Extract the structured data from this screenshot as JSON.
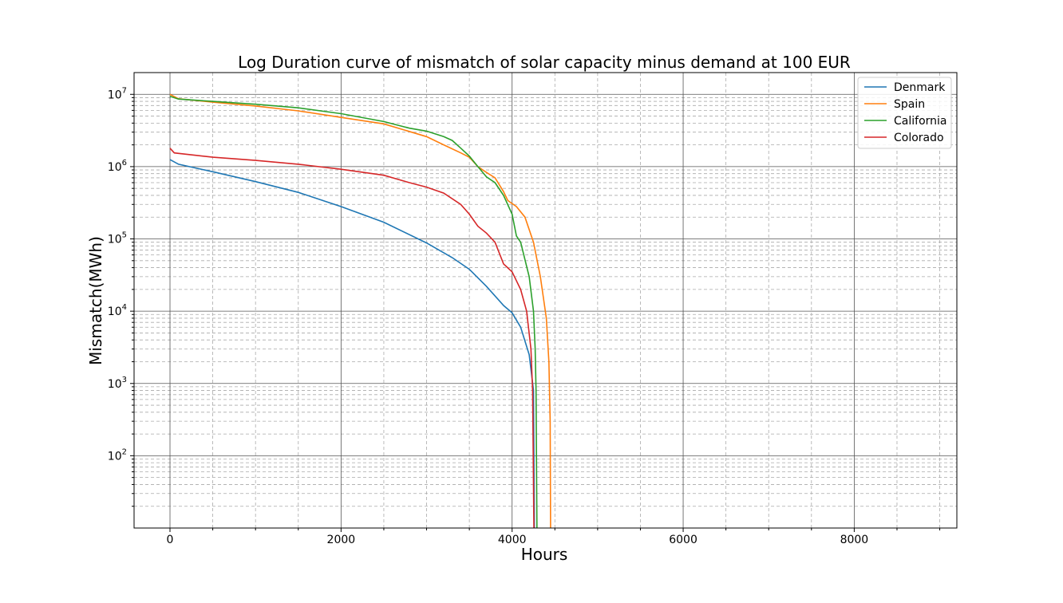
{
  "chart_data": {
    "type": "line",
    "title": "Log Duration curve of mismatch of solar capacity minus demand at 100 EUR",
    "xlabel": "Hours",
    "ylabel": "Mismatch(MWh)",
    "xlim": [
      -420,
      9200
    ],
    "ylim": [
      10,
      20000000
    ],
    "yscale": "log",
    "x_ticks": [
      0,
      2000,
      4000,
      6000,
      8000
    ],
    "x_tick_labels": [
      "0",
      "2000",
      "4000",
      "6000",
      "8000"
    ],
    "y_tick_labels": [
      {
        "base": "10",
        "exp": "7"
      },
      {
        "base": "10",
        "exp": "6"
      },
      {
        "base": "10",
        "exp": "5"
      },
      {
        "base": "10",
        "exp": "4"
      },
      {
        "base": "10",
        "exp": "3"
      },
      {
        "base": "10",
        "exp": "2"
      }
    ],
    "grid": true,
    "legend_position": "top-right",
    "series": [
      {
        "name": "Denmark",
        "color": "#1f77b4",
        "points": [
          [
            0,
            1250000
          ],
          [
            100,
            1080000
          ],
          [
            500,
            850000
          ],
          [
            1000,
            620000
          ],
          [
            1500,
            440000
          ],
          [
            2000,
            280000
          ],
          [
            2500,
            170000
          ],
          [
            3000,
            88000
          ],
          [
            3300,
            55000
          ],
          [
            3500,
            38000
          ],
          [
            3700,
            22000
          ],
          [
            3900,
            12000
          ],
          [
            4000,
            9500
          ],
          [
            4100,
            6000
          ],
          [
            4200,
            2500
          ],
          [
            4250,
            800
          ],
          [
            4260,
            10
          ]
        ]
      },
      {
        "name": "Spain",
        "color": "#ff7f0e",
        "points": [
          [
            0,
            10000000
          ],
          [
            100,
            8700000
          ],
          [
            500,
            7800000
          ],
          [
            1000,
            6900000
          ],
          [
            1500,
            5900000
          ],
          [
            2000,
            4800000
          ],
          [
            2500,
            3900000
          ],
          [
            3000,
            2600000
          ],
          [
            3200,
            2000000
          ],
          [
            3400,
            1550000
          ],
          [
            3500,
            1350000
          ],
          [
            3600,
            1000000
          ],
          [
            3700,
            830000
          ],
          [
            3800,
            700000
          ],
          [
            3900,
            450000
          ],
          [
            3950,
            340000
          ],
          [
            4050,
            280000
          ],
          [
            4150,
            200000
          ],
          [
            4250,
            90000
          ],
          [
            4330,
            30000
          ],
          [
            4400,
            8000
          ],
          [
            4430,
            2000
          ],
          [
            4445,
            300
          ],
          [
            4450,
            10
          ]
        ]
      },
      {
        "name": "California",
        "color": "#2ca02c",
        "points": [
          [
            0,
            9400000
          ],
          [
            100,
            8600000
          ],
          [
            500,
            8000000
          ],
          [
            1000,
            7300000
          ],
          [
            1500,
            6500000
          ],
          [
            2000,
            5400000
          ],
          [
            2500,
            4200000
          ],
          [
            2800,
            3400000
          ],
          [
            3000,
            3100000
          ],
          [
            3200,
            2600000
          ],
          [
            3300,
            2300000
          ],
          [
            3400,
            1800000
          ],
          [
            3500,
            1400000
          ],
          [
            3600,
            1000000
          ],
          [
            3700,
            720000
          ],
          [
            3800,
            600000
          ],
          [
            3900,
            400000
          ],
          [
            4000,
            220000
          ],
          [
            4050,
            110000
          ],
          [
            4100,
            90000
          ],
          [
            4200,
            30000
          ],
          [
            4250,
            10000
          ],
          [
            4270,
            3000
          ],
          [
            4280,
            800
          ],
          [
            4290,
            10
          ]
        ]
      },
      {
        "name": "Colorado",
        "color": "#d62728",
        "points": [
          [
            0,
            1800000
          ],
          [
            50,
            1550000
          ],
          [
            500,
            1350000
          ],
          [
            1000,
            1220000
          ],
          [
            1500,
            1080000
          ],
          [
            2000,
            920000
          ],
          [
            2500,
            760000
          ],
          [
            2800,
            600000
          ],
          [
            3000,
            520000
          ],
          [
            3200,
            430000
          ],
          [
            3400,
            300000
          ],
          [
            3500,
            220000
          ],
          [
            3600,
            150000
          ],
          [
            3700,
            120000
          ],
          [
            3800,
            90000
          ],
          [
            3900,
            45000
          ],
          [
            4000,
            35000
          ],
          [
            4100,
            20000
          ],
          [
            4170,
            10000
          ],
          [
            4220,
            3000
          ],
          [
            4240,
            800
          ],
          [
            4255,
            10
          ]
        ]
      }
    ]
  }
}
